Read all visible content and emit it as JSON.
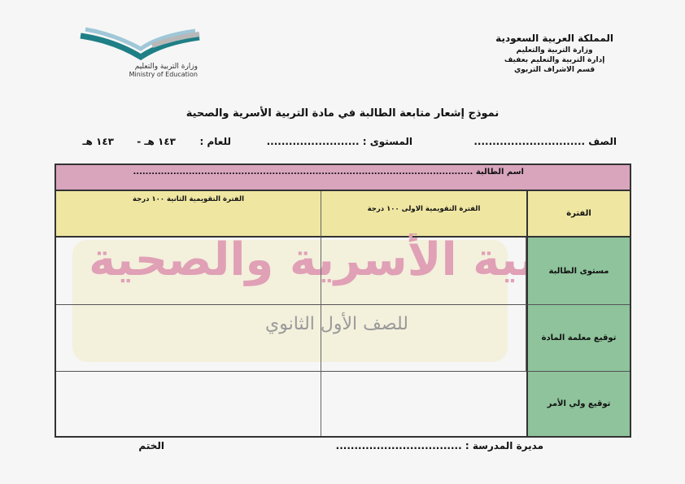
{
  "header": {
    "org_lines": [
      "المملكة العربية السعودية",
      "وزارة التربية والتعليم",
      "إدارة التربية والتعليم بعفيف",
      "قسم الاشراف التربوي"
    ],
    "logo_text_ar": "وزارة التربية والتعليم",
    "logo_text_en": "Ministry of Education",
    "logo_colors": {
      "teal": "#1f7f86",
      "light_blue": "#9fc7d8",
      "gray": "#b8b8b8"
    }
  },
  "form": {
    "title": "نموذج إشعار متابعة الطالبة في مادة التربية الأسرية والصحية",
    "class_label": "الصف ..............................",
    "level_label": "المستوى : .........................",
    "year_label": "للعام :",
    "year_from": "١٤٣ هـ -",
    "year_to": "١٤٣ هـ"
  },
  "table": {
    "student_name": "اسم الطالبة ..............................................................................................................",
    "period_header": "الفترة",
    "col_first": "الفترة التقويمية الاولى ١٠٠ درجة",
    "col_second": "الفترة التقويمية الثانية ١٠٠ درجة",
    "rows": [
      "مستوى الطالبة",
      "توقيع معلمة المادة",
      "توقيع ولي الأمر"
    ],
    "colors": {
      "name_row": "#d9a5bd",
      "header_row": "#efe6a2",
      "side_col": "#8ec39b"
    }
  },
  "watermark": {
    "big": "بية الأسرية والصحية",
    "small": "للصف الأول الثانوي"
  },
  "footer": {
    "principal": "مديرة المدرسة : ..................................",
    "stamp": "الختم"
  }
}
